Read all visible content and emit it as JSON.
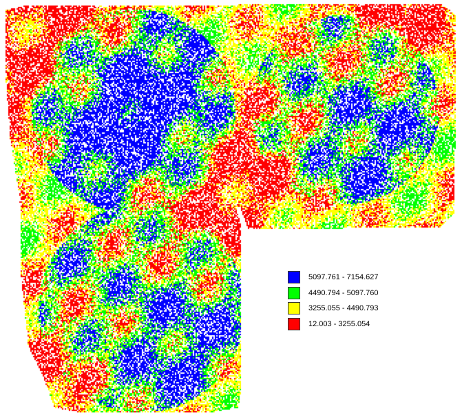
{
  "map": {
    "palette": {
      "blue": "#0000ff",
      "green": "#00ff00",
      "yellow": "#ffff00",
      "red": "#ff0000"
    }
  },
  "legend": {
    "items": [
      {
        "label": "5097.761 - 7154.627",
        "color": "#0000ff"
      },
      {
        "label": "4490.794 - 5097.760",
        "color": "#00ff00"
      },
      {
        "label": "3255.055 - 4490.793",
        "color": "#ffff00"
      },
      {
        "label": "12.003 - 3255.054",
        "color": "#ff0000"
      }
    ]
  }
}
